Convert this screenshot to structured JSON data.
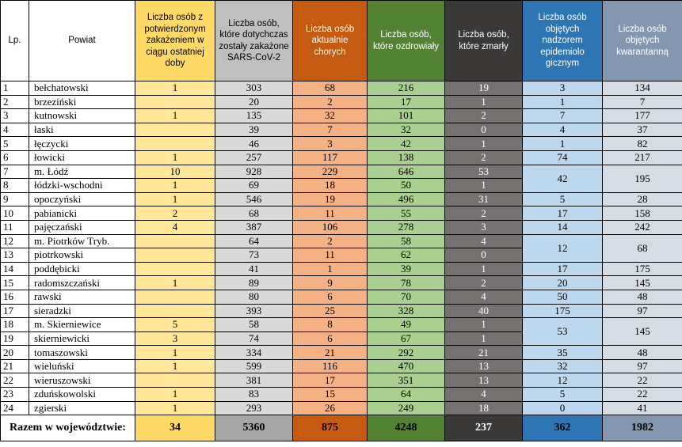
{
  "headers": {
    "lp": "Lp.",
    "powiat": "Powiat",
    "zakazeni_doba": "Liczba osób z potwierdzonym zakażeniem w ciągu ostatniej doby",
    "zakazeni_ogolem": "Liczba osób, które dotychczas zostały zakażone SARS-CoV-2",
    "chorzy": "Liczba osób aktualnie chorych",
    "ozdrowiali": "Liczba osób, które ozdrowiały",
    "zmarli": "Liczba osób, które zmarły",
    "nadzor": "Liczba osób objętych nadzorem epidemiolo gicznym",
    "kwarantanna": "Liczba osób objętych kwarantanną"
  },
  "rows": [
    {
      "lp": "1",
      "powiat": "bełchatowski",
      "doba": "1",
      "ogolem": "303",
      "chorzy": "68",
      "ozdrowiali": "216",
      "zmarli": "19",
      "nadzor": "3",
      "kwarantanna": "134"
    },
    {
      "lp": "2",
      "powiat": "brzeziński",
      "doba": "",
      "ogolem": "20",
      "chorzy": "2",
      "ozdrowiali": "17",
      "zmarli": "1",
      "nadzor": "1",
      "kwarantanna": "7"
    },
    {
      "lp": "3",
      "powiat": "kutnowski",
      "doba": "1",
      "ogolem": "135",
      "chorzy": "32",
      "ozdrowiali": "101",
      "zmarli": "2",
      "nadzor": "7",
      "kwarantanna": "177"
    },
    {
      "lp": "4",
      "powiat": "łaski",
      "doba": "",
      "ogolem": "39",
      "chorzy": "7",
      "ozdrowiali": "32",
      "zmarli": "0",
      "nadzor": "4",
      "kwarantanna": "37"
    },
    {
      "lp": "5",
      "powiat": "łęczycki",
      "doba": "",
      "ogolem": "46",
      "chorzy": "3",
      "ozdrowiali": "42",
      "zmarli": "1",
      "nadzor": "1",
      "kwarantanna": "82"
    },
    {
      "lp": "6",
      "powiat": "łowicki",
      "doba": "1",
      "ogolem": "257",
      "chorzy": "117",
      "ozdrowiali": "138",
      "zmarli": "2",
      "nadzor": "74",
      "kwarantanna": "217"
    },
    {
      "lp": "7",
      "powiat": "m. Łódź",
      "doba": "10",
      "ogolem": "928",
      "chorzy": "229",
      "ozdrowiali": "646",
      "zmarli": "53",
      "nadzor": "42",
      "kwarantanna": "195"
    },
    {
      "lp": "8",
      "powiat": "łódzki-wschodni",
      "doba": "1",
      "ogolem": "69",
      "chorzy": "18",
      "ozdrowiali": "50",
      "zmarli": "1"
    },
    {
      "lp": "9",
      "powiat": "opoczyński",
      "doba": "1",
      "ogolem": "546",
      "chorzy": "19",
      "ozdrowiali": "496",
      "zmarli": "31",
      "nadzor": "5",
      "kwarantanna": "28"
    },
    {
      "lp": "10",
      "powiat": "pabianicki",
      "doba": "2",
      "ogolem": "68",
      "chorzy": "11",
      "ozdrowiali": "55",
      "zmarli": "2",
      "nadzor": "17",
      "kwarantanna": "158"
    },
    {
      "lp": "11",
      "powiat": "pajęczański",
      "doba": "4",
      "ogolem": "387",
      "chorzy": "106",
      "ozdrowiali": "278",
      "zmarli": "3",
      "nadzor": "14",
      "kwarantanna": "242"
    },
    {
      "lp": "12",
      "powiat": "m. Piotrków Tryb.",
      "doba": "",
      "ogolem": "64",
      "chorzy": "2",
      "ozdrowiali": "58",
      "zmarli": "4",
      "nadzor": "12",
      "kwarantanna": "68"
    },
    {
      "lp": "13",
      "powiat": "piotrkowski",
      "doba": "",
      "ogolem": "73",
      "chorzy": "11",
      "ozdrowiali": "62",
      "zmarli": "0"
    },
    {
      "lp": "14",
      "powiat": "poddębicki",
      "doba": "",
      "ogolem": "41",
      "chorzy": "1",
      "ozdrowiali": "39",
      "zmarli": "1",
      "nadzor": "17",
      "kwarantanna": "175"
    },
    {
      "lp": "15",
      "powiat": "radomszczański",
      "doba": "1",
      "ogolem": "89",
      "chorzy": "9",
      "ozdrowiali": "78",
      "zmarli": "2",
      "nadzor": "20",
      "kwarantanna": "145"
    },
    {
      "lp": "16",
      "powiat": "rawski",
      "doba": "",
      "ogolem": "80",
      "chorzy": "6",
      "ozdrowiali": "70",
      "zmarli": "4",
      "nadzor": "50",
      "kwarantanna": "48"
    },
    {
      "lp": "17",
      "powiat": "sieradzki",
      "doba": "",
      "ogolem": "393",
      "chorzy": "25",
      "ozdrowiali": "328",
      "zmarli": "40",
      "nadzor": "175",
      "kwarantanna": "97"
    },
    {
      "lp": "18",
      "powiat": "m. Skierniewice",
      "doba": "5",
      "ogolem": "58",
      "chorzy": "8",
      "ozdrowiali": "49",
      "zmarli": "1",
      "nadzor": "53",
      "kwarantanna": "145"
    },
    {
      "lp": "19",
      "powiat": "skierniewicki",
      "doba": "3",
      "ogolem": "74",
      "chorzy": "6",
      "ozdrowiali": "67",
      "zmarli": "1"
    },
    {
      "lp": "20",
      "powiat": "tomaszowski",
      "doba": "1",
      "ogolem": "334",
      "chorzy": "21",
      "ozdrowiali": "292",
      "zmarli": "21",
      "nadzor": "35",
      "kwarantanna": "48"
    },
    {
      "lp": "21",
      "powiat": "wieluński",
      "doba": "1",
      "ogolem": "599",
      "chorzy": "116",
      "ozdrowiali": "470",
      "zmarli": "13",
      "nadzor": "32",
      "kwarantanna": "97"
    },
    {
      "lp": "22",
      "powiat": "wieruszowski",
      "doba": "",
      "ogolem": "381",
      "chorzy": "17",
      "ozdrowiali": "351",
      "zmarli": "13",
      "nadzor": "12",
      "kwarantanna": "22"
    },
    {
      "lp": "23",
      "powiat": "zduńskowolski",
      "doba": "1",
      "ogolem": "83",
      "chorzy": "15",
      "ozdrowiali": "64",
      "zmarli": "4",
      "nadzor": "5",
      "kwarantanna": "22"
    },
    {
      "lp": "24",
      "powiat": "zgierski",
      "doba": "1",
      "ogolem": "293",
      "chorzy": "26",
      "ozdrowiali": "249",
      "zmarli": "18",
      "nadzor": "0",
      "kwarantanna": "41"
    }
  ],
  "totals": {
    "label": "Razem w województwie:",
    "doba": "34",
    "ogolem": "5360",
    "chorzy": "875",
    "ozdrowiali": "4248",
    "zmarli": "237",
    "nadzor": "362",
    "kwarantanna": "1982"
  },
  "colors": {
    "doba": "#ffd966",
    "ogolem": "#bfbfbf",
    "chorzy": "#c55a11",
    "ozdrowiali": "#548235",
    "zmarli": "#3b3838",
    "nadzor": "#2e75b6",
    "kwarantanna": "#8497b0"
  }
}
